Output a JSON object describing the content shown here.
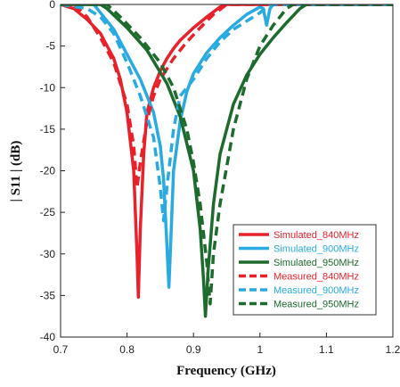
{
  "chart_data": {
    "type": "line",
    "title": "",
    "xlabel": "Frequency (GHz)",
    "ylabel": "| S11 | (dB)",
    "xlim": [
      0.7,
      1.2
    ],
    "ylim": [
      -40,
      0
    ],
    "x_ticks": [
      "0.7",
      "0.8",
      "0.9",
      "1",
      "1.1",
      "1.2"
    ],
    "y_ticks": [
      "0",
      "-5",
      "-10",
      "-15",
      "-20",
      "-25",
      "-30",
      "-35",
      "-40"
    ],
    "grid": false,
    "legend_position": "lower-right",
    "series": [
      {
        "name": "Simulated_840MHz",
        "color": "#e8212b",
        "style": "solid",
        "points": [
          [
            0.7,
            0
          ],
          [
            0.72,
            -0.5
          ],
          [
            0.74,
            -1.8
          ],
          [
            0.76,
            -3.5
          ],
          [
            0.78,
            -6.5
          ],
          [
            0.79,
            -9
          ],
          [
            0.8,
            -13
          ],
          [
            0.81,
            -20
          ],
          [
            0.815,
            -30
          ],
          [
            0.817,
            -35.2
          ],
          [
            0.82,
            -27
          ],
          [
            0.825,
            -18
          ],
          [
            0.83,
            -13
          ],
          [
            0.84,
            -10
          ],
          [
            0.85,
            -8
          ],
          [
            0.86,
            -6.5
          ],
          [
            0.87,
            -5.3
          ],
          [
            0.88,
            -4.3
          ],
          [
            0.9,
            -2.8
          ],
          [
            0.92,
            -1.5
          ],
          [
            0.94,
            -0.3
          ],
          [
            0.95,
            0
          ],
          [
            1.2,
            0
          ]
        ]
      },
      {
        "name": "Simulated_900MHz",
        "color": "#29abe2",
        "style": "solid",
        "points": [
          [
            0.7,
            0
          ],
          [
            0.75,
            0
          ],
          [
            0.76,
            -1
          ],
          [
            0.78,
            -3
          ],
          [
            0.8,
            -6
          ],
          [
            0.82,
            -9
          ],
          [
            0.84,
            -13
          ],
          [
            0.85,
            -17
          ],
          [
            0.855,
            -21
          ],
          [
            0.86,
            -29
          ],
          [
            0.863,
            -34
          ],
          [
            0.867,
            -26
          ],
          [
            0.87,
            -20
          ],
          [
            0.88,
            -14
          ],
          [
            0.89,
            -10.5
          ],
          [
            0.9,
            -8.3
          ],
          [
            0.92,
            -5.8
          ],
          [
            0.94,
            -4
          ],
          [
            0.96,
            -2.5
          ],
          [
            0.98,
            -1.2
          ],
          [
            1.0,
            -0.3
          ],
          [
            1.005,
            -0.5
          ],
          [
            1.01,
            -2.5
          ],
          [
            1.015,
            -0.5
          ],
          [
            1.02,
            0
          ],
          [
            1.2,
            0
          ]
        ]
      },
      {
        "name": "Simulated_950MHz",
        "color": "#1e6b2e",
        "style": "solid",
        "points": [
          [
            0.7,
            0
          ],
          [
            0.76,
            0
          ],
          [
            0.77,
            -0.5
          ],
          [
            0.8,
            -2.8
          ],
          [
            0.83,
            -5.5
          ],
          [
            0.86,
            -9.5
          ],
          [
            0.88,
            -13.5
          ],
          [
            0.9,
            -20
          ],
          [
            0.91,
            -27
          ],
          [
            0.915,
            -33
          ],
          [
            0.918,
            -37.5
          ],
          [
            0.922,
            -32
          ],
          [
            0.93,
            -24
          ],
          [
            0.94,
            -18
          ],
          [
            0.96,
            -12
          ],
          [
            0.98,
            -8.5
          ],
          [
            1.0,
            -6
          ],
          [
            1.02,
            -4
          ],
          [
            1.04,
            -2.2
          ],
          [
            1.06,
            -0.5
          ],
          [
            1.07,
            0
          ],
          [
            1.2,
            0
          ]
        ]
      },
      {
        "name": "Measured_840MHz",
        "color": "#e8212b",
        "style": "dashed",
        "points": [
          [
            0.7,
            0
          ],
          [
            0.72,
            0
          ],
          [
            0.74,
            -1.5
          ],
          [
            0.76,
            -4
          ],
          [
            0.78,
            -7
          ],
          [
            0.8,
            -12
          ],
          [
            0.81,
            -17
          ],
          [
            0.815,
            -22
          ],
          [
            0.82,
            -19
          ],
          [
            0.83,
            -14
          ],
          [
            0.84,
            -11
          ],
          [
            0.85,
            -9
          ],
          [
            0.87,
            -6.5
          ],
          [
            0.89,
            -4.5
          ],
          [
            0.91,
            -2.8
          ],
          [
            0.93,
            -1.2
          ],
          [
            0.95,
            0
          ],
          [
            1.2,
            0
          ]
        ]
      },
      {
        "name": "Measured_900MHz",
        "color": "#29abe2",
        "style": "dashed",
        "points": [
          [
            0.7,
            0
          ],
          [
            0.74,
            -0.5
          ],
          [
            0.76,
            -1.5
          ],
          [
            0.78,
            -3.5
          ],
          [
            0.8,
            -7
          ],
          [
            0.82,
            -11
          ],
          [
            0.84,
            -16
          ],
          [
            0.85,
            -22
          ],
          [
            0.855,
            -26
          ],
          [
            0.86,
            -22
          ],
          [
            0.87,
            -15
          ],
          [
            0.88,
            -11
          ],
          [
            0.9,
            -9
          ],
          [
            0.92,
            -6.5
          ],
          [
            0.94,
            -4.5
          ],
          [
            0.96,
            -3
          ],
          [
            0.98,
            -2
          ],
          [
            1.0,
            -1
          ],
          [
            1.01,
            -0.3
          ],
          [
            1.02,
            0
          ],
          [
            1.2,
            0
          ]
        ]
      },
      {
        "name": "Measured_950MHz",
        "color": "#1e6b2e",
        "style": "dashed",
        "points": [
          [
            0.7,
            0
          ],
          [
            0.77,
            0
          ],
          [
            0.79,
            -1.5
          ],
          [
            0.82,
            -4
          ],
          [
            0.85,
            -7
          ],
          [
            0.87,
            -10
          ],
          [
            0.89,
            -15
          ],
          [
            0.9,
            -19
          ],
          [
            0.91,
            -24
          ],
          [
            0.92,
            -31
          ],
          [
            0.925,
            -36
          ],
          [
            0.93,
            -30
          ],
          [
            0.94,
            -24
          ],
          [
            0.96,
            -15
          ],
          [
            0.98,
            -9
          ],
          [
            1.0,
            -5
          ],
          [
            1.02,
            -2.5
          ],
          [
            1.04,
            -0.5
          ],
          [
            1.05,
            0
          ],
          [
            1.2,
            0
          ]
        ]
      }
    ]
  }
}
